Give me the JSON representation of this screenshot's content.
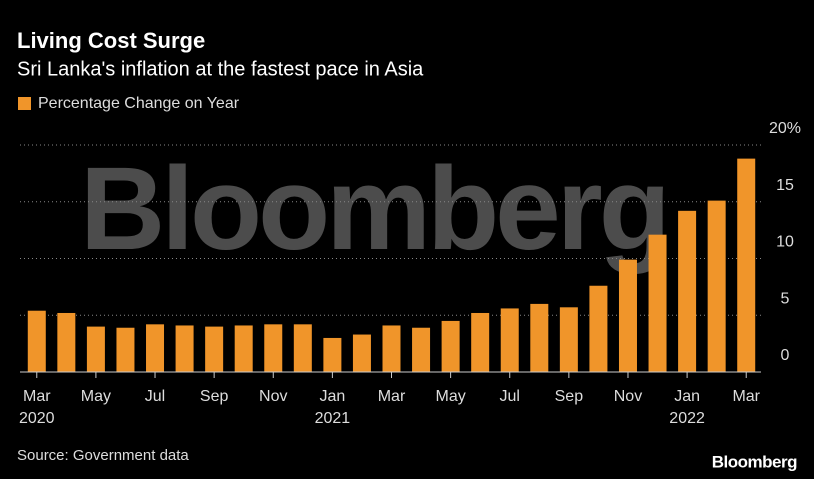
{
  "chart_data": {
    "type": "bar",
    "title": "Living Cost Surge",
    "subtitle": "Sri Lanka's inflation at the fastest pace in Asia",
    "series": [
      {
        "name": "Percentage Change on Year",
        "color": "#f0952a",
        "values": [
          5.4,
          5.2,
          4.0,
          3.9,
          4.2,
          4.1,
          4.0,
          4.1,
          4.2,
          4.2,
          3.0,
          3.3,
          4.1,
          3.9,
          4.5,
          5.2,
          5.6,
          6.0,
          5.7,
          7.6,
          9.9,
          12.1,
          14.2,
          15.1,
          18.8
        ]
      }
    ],
    "categories": [
      "Mar",
      null,
      "May",
      null,
      "Jul",
      null,
      "Sep",
      null,
      "Nov",
      null,
      "Jan",
      null,
      "Mar",
      null,
      "May",
      null,
      "Jul",
      null,
      "Sep",
      null,
      "Nov",
      null,
      "Jan",
      null,
      "Mar"
    ],
    "years": [
      "2020",
      null,
      null,
      null,
      null,
      null,
      null,
      null,
      null,
      null,
      "2021",
      null,
      null,
      null,
      null,
      null,
      null,
      null,
      null,
      null,
      null,
      null,
      "2022",
      null,
      null
    ],
    "ylim": [
      0,
      20
    ],
    "yticks": [
      0,
      5,
      10,
      15,
      {
        "value": 20,
        "label": "20%"
      }
    ],
    "grid": true,
    "source": "Source: Government data",
    "watermark": "Bloomberg",
    "logo": "Bloomberg"
  }
}
